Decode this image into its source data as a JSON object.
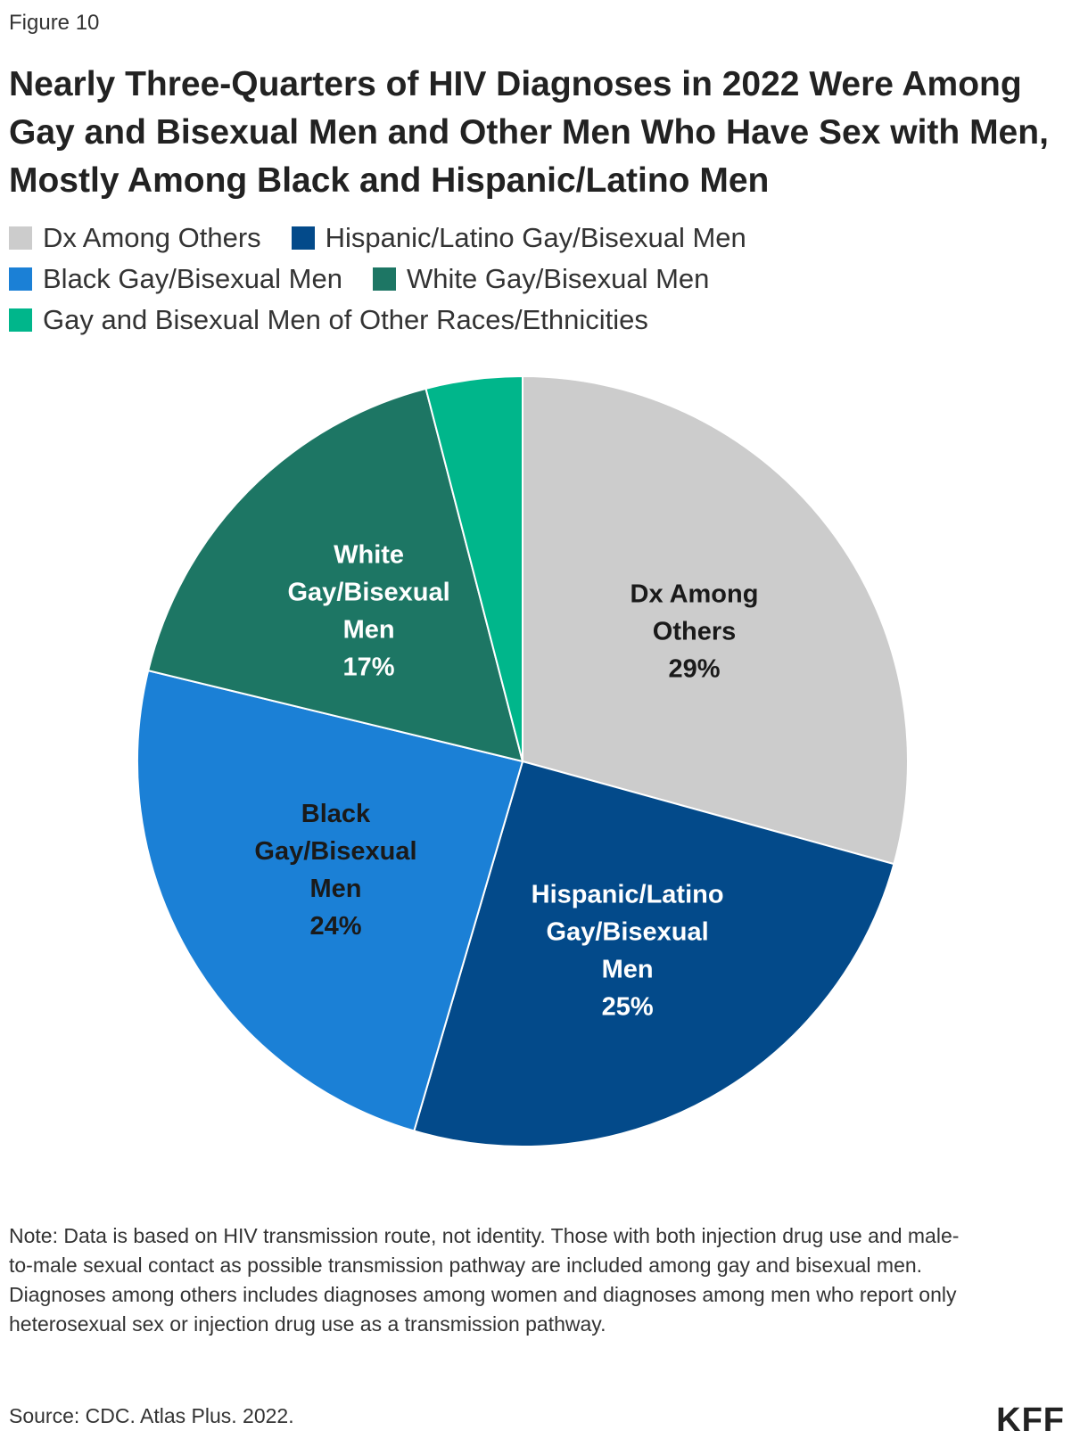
{
  "figure_label": "Figure 10",
  "chart_data": {
    "type": "pie",
    "title": "Nearly Three-Quarters of HIV Diagnoses in 2022 Were Among Gay and Bisexual Men and Other Men Who Have Sex with Men, Mostly Among Black and Hispanic/Latino Men",
    "legend_position": "top",
    "slices": [
      {
        "name": "Dx Among Others",
        "value": 29,
        "label_lines": [
          "Dx Among",
          "Others",
          "29%"
        ],
        "color": "#cccccc",
        "label_color": "#1a1a1a"
      },
      {
        "name": "Hispanic/Latino Gay/Bisexual Men",
        "value": 25,
        "label_lines": [
          "Hispanic/Latino",
          "Gay/Bisexual",
          "Men",
          "25%"
        ],
        "color": "#034a8a",
        "label_color": "#ffffff"
      },
      {
        "name": "Black Gay/Bisexual Men",
        "value": 24,
        "label_lines": [
          "Black",
          "Gay/Bisexual",
          "Men",
          "24%"
        ],
        "color": "#1b80d6",
        "label_color": "#1a1a1a"
      },
      {
        "name": "White Gay/Bisexual Men",
        "value": 17,
        "label_lines": [
          "White",
          "Gay/Bisexual",
          "Men",
          "17%"
        ],
        "color": "#1d7664",
        "label_color": "#ffffff"
      },
      {
        "name": "Gay and Bisexual Men of Other Races/Ethnicities",
        "value": 4,
        "label_lines": [],
        "color": "#00b68b",
        "label_color": "#ffffff"
      }
    ]
  },
  "legend": [
    {
      "label": "Dx Among Others",
      "color": "#cccccc"
    },
    {
      "label": "Hispanic/Latino Gay/Bisexual Men",
      "color": "#034a8a"
    },
    {
      "label": "Black Gay/Bisexual Men",
      "color": "#1b80d6"
    },
    {
      "label": "White Gay/Bisexual Men",
      "color": "#1d7664"
    },
    {
      "label": "Gay and Bisexual Men of Other Races/Ethnicities",
      "color": "#00b68b"
    }
  ],
  "note": "Note: Data is based on HIV transmission route, not identity. Those with both injection drug use and male-to-male sexual contact as possible transmission pathway are included among gay and bisexual men. Diagnoses among others includes diagnoses among women and diagnoses among men who report only heterosexual sex or injection drug use as a transmission pathway.",
  "source": "Source: CDC. Atlas Plus. 2022.",
  "logo_text": "KFF"
}
